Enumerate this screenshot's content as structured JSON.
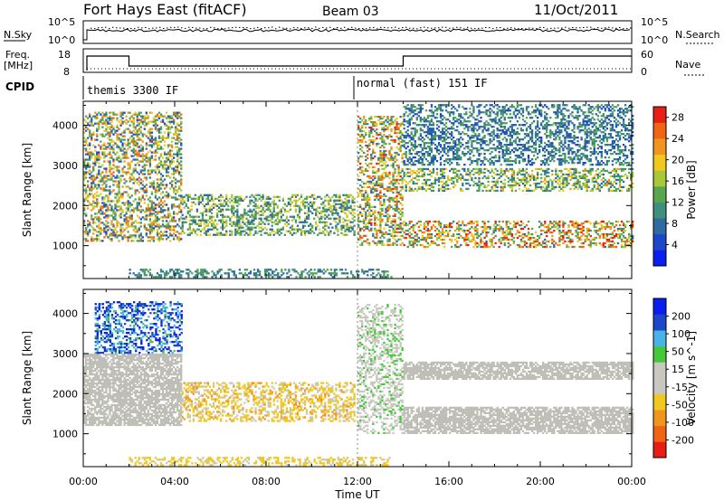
{
  "header": {
    "station": "Fort Hays East (fitACF)",
    "beam": "Beam 03",
    "date": "11/Oct/2011"
  },
  "status_panel": {
    "nsky_label": "N.Sky",
    "nsearch_label": "N.Search",
    "counts_top_tick": "10^5",
    "counts_bottom_tick": "10^0",
    "freq_label_line1": "Freq.",
    "freq_label_line2": "[MHz]",
    "freq_top_tick": "18",
    "freq_bottom_tick": "8",
    "nave_label": "Nave",
    "nave_top_tick": "60",
    "nave_bottom_tick": "0",
    "cpid_label": "CPID",
    "cpid_first": "themis 3300 IF",
    "cpid_second": "normal (fast) 151 IF",
    "cpid_change_hour": 12.0
  },
  "colors": {
    "power": [
      "#0a1ef0",
      "#1e46c8",
      "#2f6aa0",
      "#3f8f7a",
      "#5aa650",
      "#a8c83a",
      "#f0c81e",
      "#f0961e",
      "#f06414",
      "#e61e14"
    ],
    "velocity": [
      "#e61e14",
      "#f06414",
      "#f0961e",
      "#f0c81e",
      "#c8c8c0",
      "#c8c8c0",
      "#46c83c",
      "#46b4e6",
      "#1e46c8",
      "#0a1ef0"
    ],
    "ground": "#bfbfb8"
  },
  "chart_data": [
    {
      "type": "heatmap",
      "name": "power-panel",
      "ylabel": "Slant Range [km]",
      "x_ticks": [
        "00:00",
        "04:00",
        "08:00",
        "12:00",
        "16:00",
        "20:00",
        "00:00"
      ],
      "y_ticks": [
        1000,
        2000,
        3000,
        4000
      ],
      "xlim": [
        0,
        24
      ],
      "ylim": [
        180,
        4600
      ],
      "colorbar": {
        "label": "Power [dB]",
        "ticks": [
          4,
          8,
          12,
          16,
          20,
          24,
          28
        ],
        "range": [
          0,
          30
        ]
      },
      "regions": [
        {
          "x": [
            0.0,
            4.3
          ],
          "y": [
            1100,
            4300
          ],
          "power": [
            4,
            26
          ]
        },
        {
          "x": [
            4.3,
            11.9
          ],
          "y": [
            1250,
            2250
          ],
          "power": [
            6,
            20
          ]
        },
        {
          "x": [
            12.0,
            14.0
          ],
          "y": [
            1000,
            4200
          ],
          "power": [
            6,
            28
          ]
        },
        {
          "x": [
            14.0,
            24.0
          ],
          "y": [
            950,
            1600
          ],
          "power": [
            8,
            30
          ]
        },
        {
          "x": [
            14.0,
            24.0
          ],
          "y": [
            2350,
            2900
          ],
          "power": [
            6,
            22
          ]
        },
        {
          "x": [
            14.0,
            24.0
          ],
          "y": [
            3000,
            4500
          ],
          "power": [
            4,
            14
          ]
        },
        {
          "x": [
            2.0,
            13.5
          ],
          "y": [
            200,
            400
          ],
          "power": [
            6,
            14
          ]
        }
      ]
    },
    {
      "type": "heatmap",
      "name": "velocity-panel",
      "xlabel": "Time UT",
      "ylabel": "Slant Range [km]",
      "x_ticks": [
        "00:00",
        "04:00",
        "08:00",
        "12:00",
        "16:00",
        "20:00",
        "00:00"
      ],
      "y_ticks": [
        1000,
        2000,
        3000,
        4000
      ],
      "xlim": [
        0,
        24
      ],
      "ylim": [
        180,
        4600
      ],
      "colorbar": {
        "label": "Velocity [m s^-1]",
        "ticks": [
          200,
          100,
          50,
          15,
          -15,
          -50,
          -100,
          -200
        ],
        "range": [
          -250,
          250
        ]
      },
      "regions": [
        {
          "x": [
            0.0,
            4.3
          ],
          "y": [
            1200,
            3000
          ],
          "velocity": [
            -15,
            15
          ],
          "ground_scatter": true
        },
        {
          "x": [
            0.5,
            4.3
          ],
          "y": [
            3000,
            4300
          ],
          "velocity": [
            80,
            250
          ]
        },
        {
          "x": [
            4.3,
            11.9
          ],
          "y": [
            1300,
            2250
          ],
          "velocity": [
            -120,
            -20
          ]
        },
        {
          "x": [
            12.0,
            14.0
          ],
          "y": [
            1000,
            4200
          ],
          "velocity": [
            20,
            60
          ]
        },
        {
          "x": [
            14.0,
            24.0
          ],
          "y": [
            1000,
            1650
          ],
          "velocity": [
            -15,
            15
          ],
          "ground_scatter": true
        },
        {
          "x": [
            14.0,
            24.0
          ],
          "y": [
            2350,
            2800
          ],
          "velocity": [
            -15,
            15
          ],
          "ground_scatter": true
        },
        {
          "x": [
            2.0,
            13.5
          ],
          "y": [
            200,
            400
          ],
          "velocity": [
            -100,
            -30
          ]
        }
      ]
    }
  ]
}
